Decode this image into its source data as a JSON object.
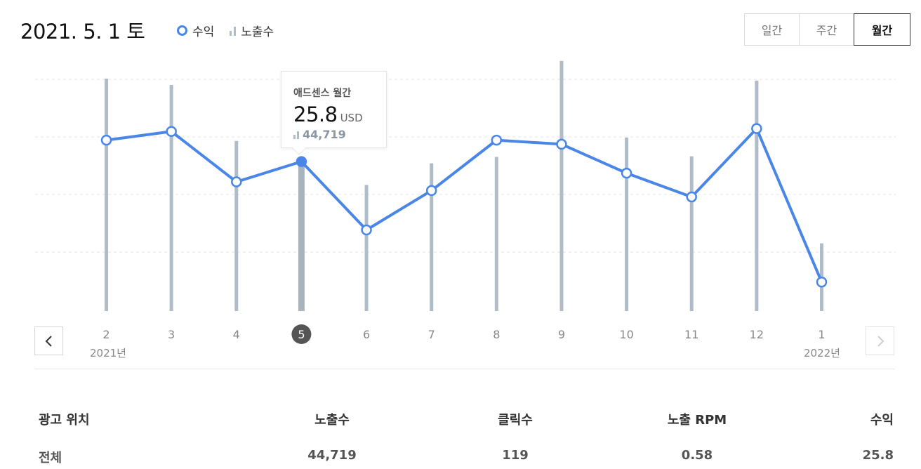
{
  "header": {
    "date_title": "2021. 5. 1 토",
    "legend": {
      "revenue": "수익",
      "impressions": "노출수"
    },
    "period_tabs": [
      {
        "label": "일간",
        "active": false
      },
      {
        "label": "주간",
        "active": false
      },
      {
        "label": "월간",
        "active": true
      }
    ]
  },
  "tooltip": {
    "title": "애드센스 월간",
    "value": "25.8",
    "unit": "USD",
    "impressions": "44,719"
  },
  "nav": {
    "prev_icon": "chevron-left-icon",
    "next_icon": "chevron-right-icon"
  },
  "year_labels": {
    "start": "2021년",
    "end": "2022년"
  },
  "colors": {
    "line": "#4a86e8",
    "bar": "#b1bcc9",
    "bar_selected": "#a9b3c0",
    "grid": "#e3e3e3",
    "selected_badge": "#555555"
  },
  "chart_data": {
    "type": "line",
    "categories": [
      "2",
      "3",
      "4",
      "5",
      "6",
      "7",
      "8",
      "9",
      "10",
      "11",
      "12",
      "1"
    ],
    "selected_index": 3,
    "series": [
      {
        "name": "수익",
        "type": "line",
        "values": [
          29.5,
          31.0,
          22.3,
          25.8,
          14.0,
          20.8,
          29.5,
          28.8,
          23.8,
          19.7,
          31.5,
          5.0
        ]
      },
      {
        "name": "노출수",
        "type": "bar",
        "values": [
          69700,
          67800,
          51000,
          44719,
          37800,
          44300,
          46200,
          75000,
          52000,
          46400,
          69100,
          20300
        ]
      }
    ],
    "revenue_ylim": [
      0,
      40
    ],
    "impressions_ylim": [
      0,
      80000
    ],
    "grid": true,
    "legend_position": "top-left"
  },
  "table": {
    "headers": [
      "광고 위치",
      "노출수",
      "클릭수",
      "노출 RPM",
      "수익"
    ],
    "rows": [
      [
        "전체",
        "44,719",
        "119",
        "0.58",
        "25.8"
      ]
    ]
  }
}
